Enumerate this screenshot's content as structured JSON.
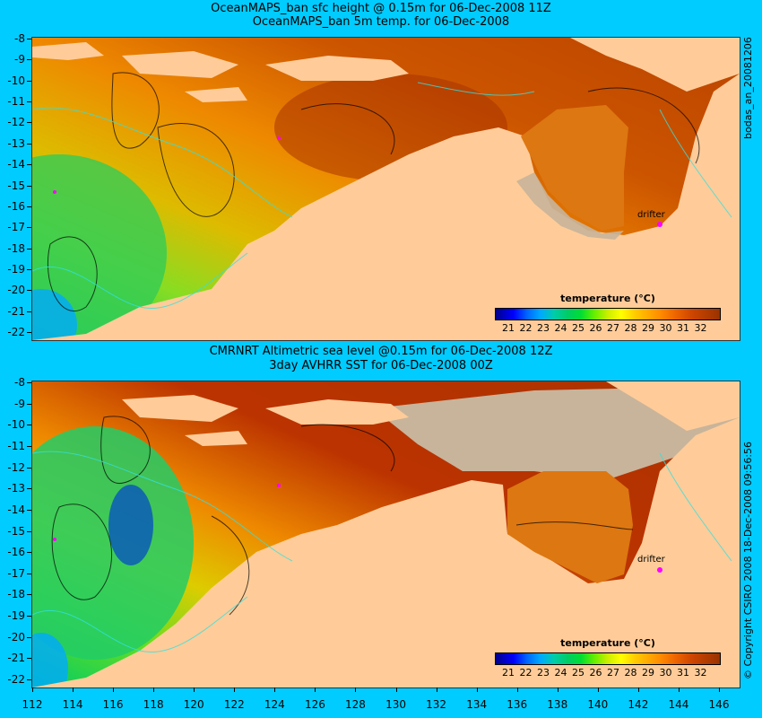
{
  "titles": {
    "top_line1": "OceanMAPS_ban sfc height @ 0.15m for 06-Dec-2008 11Z",
    "top_line2": "OceanMAPS_ban 5m temp. for 06-Dec-2008",
    "bottom_line1": "CMRNRT Altimetric sea level  @0.15m  for 06-Dec-2008 12Z",
    "bottom_line2": "3day AVHRR SST for 06-Dec-2008 00Z"
  },
  "side_labels": {
    "top": "bodas_an_20081206",
    "bottom": "© Copyright CSIRO 2008   18-Dec-2008 09:56:56"
  },
  "axes": {
    "y_ticks": [
      "-8",
      "-9",
      "-10",
      "-11",
      "-12",
      "-13",
      "-14",
      "-15",
      "-16",
      "-17",
      "-18",
      "-19",
      "-20",
      "-21",
      "-22"
    ],
    "x_ticks": [
      "112",
      "114",
      "116",
      "118",
      "120",
      "122",
      "124",
      "126",
      "128",
      "130",
      "132",
      "134",
      "136",
      "138",
      "140",
      "142",
      "144",
      "146"
    ]
  },
  "colorbar": {
    "title": "temperature (°C)",
    "ticks": [
      "21",
      "22",
      "23",
      "24",
      "25",
      "26",
      "27",
      "28",
      "29",
      "30",
      "31",
      "32"
    ],
    "colors": [
      "#00008b",
      "#0000ff",
      "#00aaff",
      "#00cc66",
      "#66ee00",
      "#ffff00",
      "#ffaa00",
      "#ee6600",
      "#993300"
    ]
  },
  "annotations": {
    "drifter_top": "drifter",
    "drifter_bottom": "drifter"
  },
  "map_colors": {
    "land": "#ffcc99",
    "no_data": "#c8b49a",
    "background": "#00ccff"
  }
}
